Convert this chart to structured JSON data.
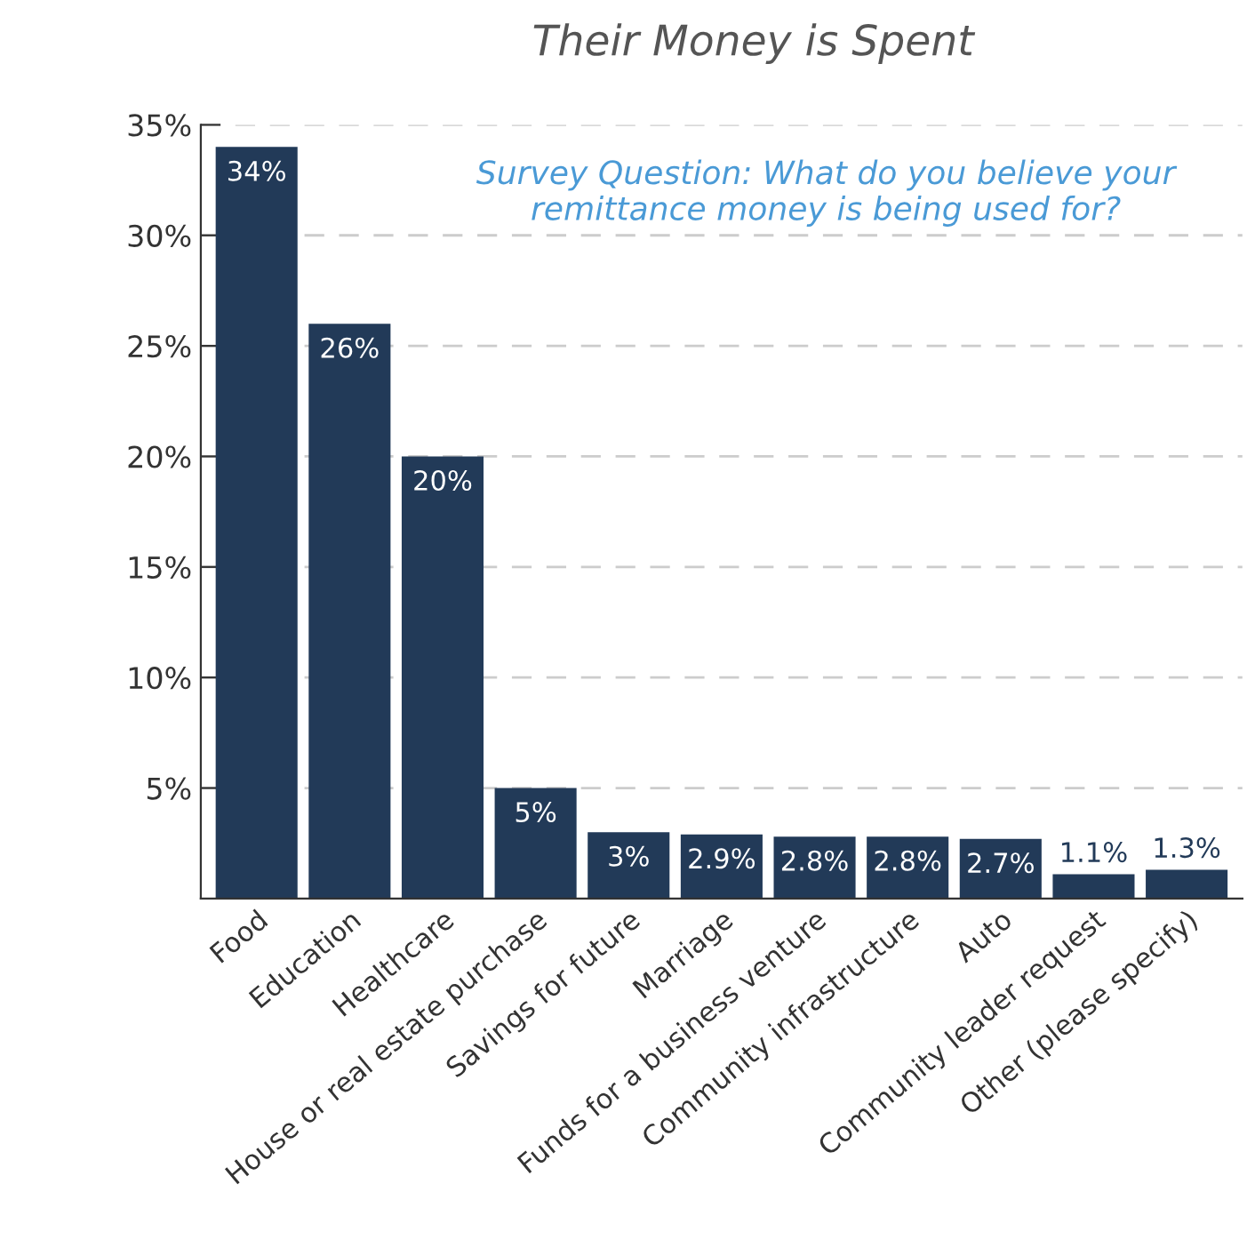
{
  "chart_data": {
    "type": "bar",
    "title": "Their Money is Spent",
    "annotations": [
      "Survey Question: What do you believe your remittance money is being used for?"
    ],
    "categories": [
      "Food",
      "Education",
      "Healthcare",
      "House or real estate purchase",
      "Savings for future",
      "Marriage",
      "Funds for a business venture",
      "Community infrastructure",
      "Auto",
      "Community leader request",
      "Other (please specify)"
    ],
    "values": [
      34,
      26,
      20,
      5,
      3,
      2.9,
      2.8,
      2.8,
      2.7,
      1.1,
      1.3
    ],
    "color": "#223a58",
    "data_labels": true,
    "value_labels": [
      "34%",
      "26%",
      "20%",
      "5%",
      "3%",
      "2.9%",
      "2.8%",
      "2.8%",
      "2.7%",
      "1.1%",
      "1.3%"
    ],
    "ylim": [
      0,
      35
    ],
    "yticks": [
      {
        "value": 5,
        "label": "5%"
      },
      {
        "value": 10,
        "label": "10%"
      },
      {
        "value": 15,
        "label": "15%"
      },
      {
        "value": 20,
        "label": "20%"
      },
      {
        "value": 25,
        "label": "25%"
      },
      {
        "value": 30,
        "label": "30%"
      },
      {
        "value": 35,
        "label": "35%"
      }
    ],
    "grid": "y"
  }
}
